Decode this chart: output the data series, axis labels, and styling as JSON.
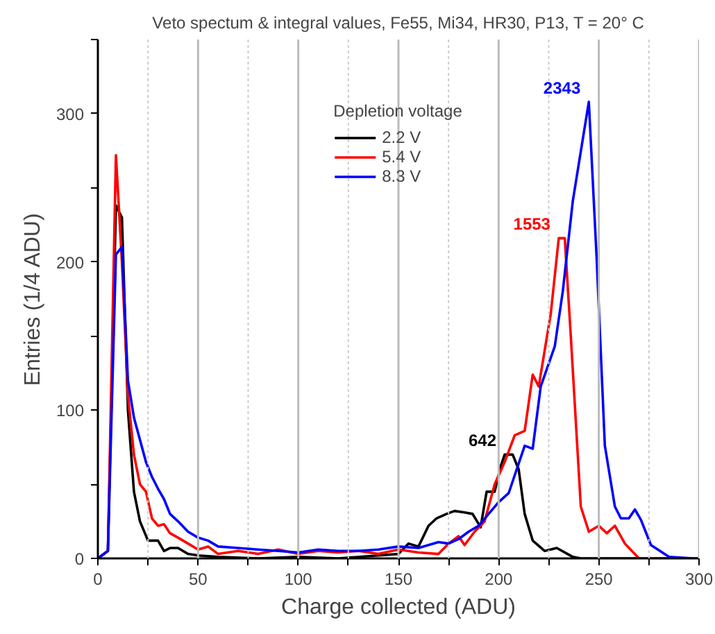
{
  "chart_data": {
    "type": "line",
    "title": "Veto spectum & integral values, Fe55, Mi34, HR30, P13, T = 20° C",
    "xlabel": "Charge collected (ADU)",
    "ylabel": "Entries (1/4 ADU)",
    "legend_title": "Depletion voltage",
    "legend": "top",
    "grid": "x",
    "marker": "none",
    "line_style": "solid",
    "xlim": [
      0,
      300
    ],
    "ylim": [
      0,
      350
    ],
    "xticks": [
      0,
      {
        "value": 25,
        "label": null
      },
      50,
      {
        "value": 75,
        "label": null
      },
      100,
      {
        "value": 125,
        "label": null
      },
      150,
      {
        "value": 175,
        "label": null
      },
      200,
      {
        "value": 225,
        "label": null
      },
      250,
      {
        "value": 275,
        "label": null
      },
      300
    ],
    "yticks": [
      0,
      {
        "value": 50,
        "label": null
      },
      100,
      {
        "value": 150,
        "label": null
      },
      200,
      {
        "value": 250,
        "label": null
      },
      300,
      {
        "value": 350,
        "label": null
      }
    ],
    "series": [
      {
        "name": "2.2 V",
        "color": "#000000",
        "x": [
          0,
          5,
          9,
          12,
          15,
          18,
          21,
          25,
          30,
          33,
          36,
          40,
          45,
          50,
          60,
          80,
          100,
          120,
          140,
          150,
          155,
          160,
          165,
          169,
          174,
          178,
          183,
          187,
          191,
          194,
          198,
          201,
          203,
          207,
          210,
          213,
          217,
          223,
          229,
          237,
          241,
          260,
          300
        ],
        "values": [
          0,
          5,
          238,
          230,
          100,
          45,
          25,
          12,
          12,
          5,
          7,
          7,
          3,
          2,
          1,
          0,
          1,
          0,
          2,
          3,
          10,
          8,
          22,
          27,
          30,
          32,
          31,
          30,
          21,
          45,
          45,
          62,
          70,
          70,
          60,
          30,
          12,
          5,
          7,
          1,
          0,
          0,
          0
        ]
      },
      {
        "name": "5.4 V",
        "color": "#ff0000",
        "x": [
          0,
          5,
          9,
          12,
          15,
          18,
          21,
          24,
          27,
          30,
          33,
          36,
          40,
          45,
          50,
          55,
          60,
          70,
          80,
          90,
          100,
          110,
          120,
          130,
          140,
          150,
          160,
          170,
          175,
          180,
          183,
          188,
          193,
          198,
          203,
          208,
          213,
          217,
          220,
          226,
          230,
          233,
          236,
          241,
          245,
          250,
          254,
          258,
          263,
          270,
          300
        ],
        "values": [
          0,
          5,
          272,
          200,
          110,
          70,
          50,
          45,
          27,
          22,
          23,
          17,
          14,
          10,
          6,
          8,
          3,
          5,
          3,
          6,
          3,
          5,
          4,
          5,
          3,
          6,
          4,
          3,
          10,
          15,
          9,
          18,
          25,
          50,
          65,
          83,
          86,
          124,
          116,
          165,
          216,
          216,
          150,
          35,
          18,
          22,
          17,
          22,
          10,
          0,
          0
        ]
      },
      {
        "name": "8.3 V",
        "color": "#0000ff",
        "x": [
          0,
          5,
          9,
          12,
          15,
          18,
          21,
          24,
          27,
          30,
          33,
          36,
          40,
          45,
          50,
          55,
          60,
          70,
          80,
          90,
          100,
          110,
          120,
          130,
          140,
          150,
          160,
          170,
          175,
          180,
          185,
          190,
          195,
          200,
          205,
          209,
          213,
          217,
          221,
          228,
          232,
          237,
          245,
          249,
          253,
          258,
          261,
          265,
          268,
          271,
          276,
          285,
          297,
          300
        ],
        "values": [
          0,
          5,
          205,
          210,
          120,
          95,
          80,
          65,
          55,
          47,
          40,
          30,
          25,
          18,
          14,
          12,
          8,
          7,
          6,
          5,
          4,
          6,
          5,
          5,
          6,
          8,
          7,
          11,
          10,
          13,
          18,
          22,
          30,
          38,
          44,
          60,
          76,
          74,
          116,
          143,
          180,
          241,
          308,
          200,
          76,
          35,
          27,
          27,
          33,
          26,
          9,
          1,
          0,
          0
        ]
      }
    ],
    "annotations": [
      "642",
      "1553",
      "2343"
    ]
  }
}
